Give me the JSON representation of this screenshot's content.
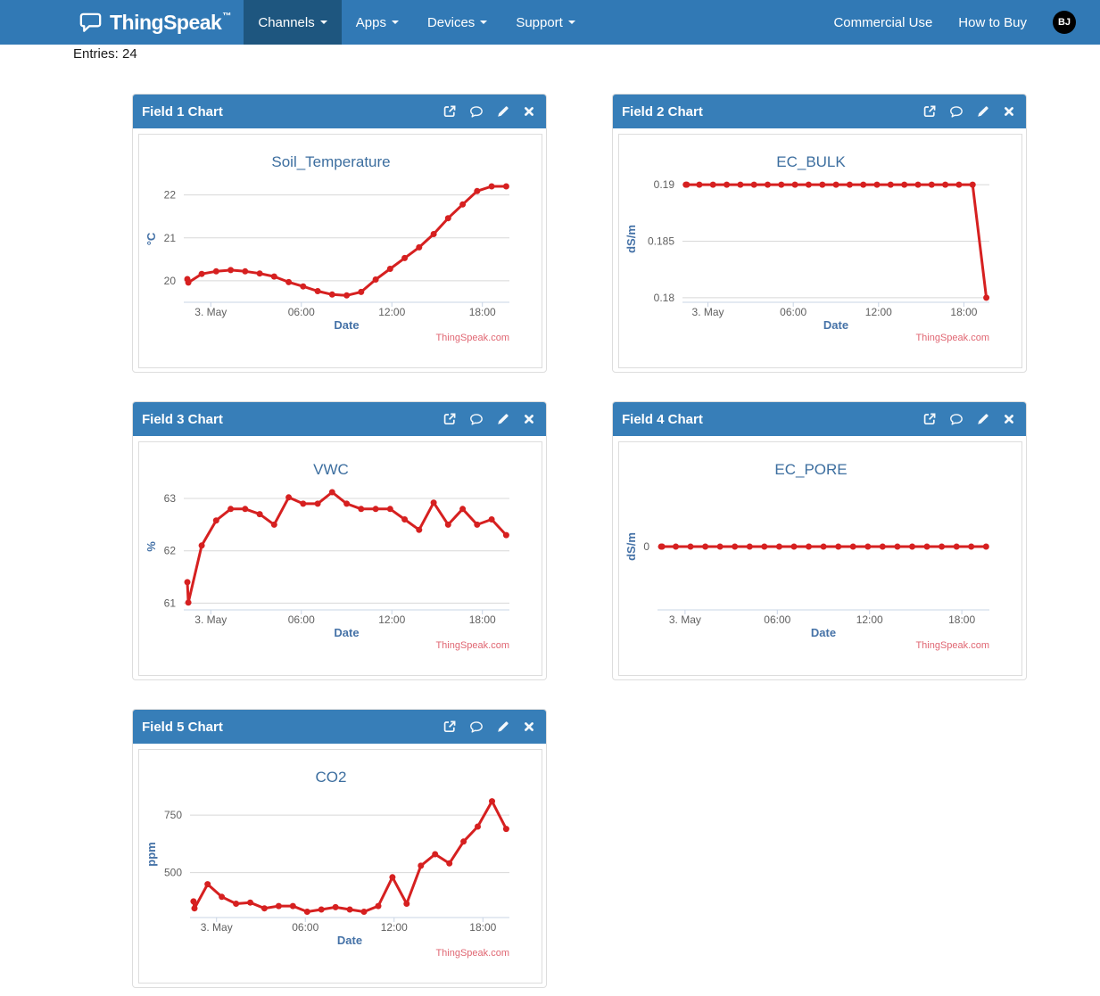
{
  "navbar": {
    "brand": "ThingSpeak",
    "brand_tm": "™",
    "items": [
      {
        "label": "Channels",
        "active": true
      },
      {
        "label": "Apps",
        "active": false
      },
      {
        "label": "Devices",
        "active": false
      },
      {
        "label": "Support",
        "active": false
      }
    ],
    "right_items": [
      {
        "label": "Commercial Use"
      },
      {
        "label": "How to Buy"
      }
    ],
    "avatar_initials": "BJ"
  },
  "page": {
    "entries_label": "Entries: 24"
  },
  "panels": [
    {
      "title": "Field 1 Chart",
      "chart_index": 0
    },
    {
      "title": "Field 2 Chart",
      "chart_index": 1
    },
    {
      "title": "Field 3 Chart",
      "chart_index": 2
    },
    {
      "title": "Field 4 Chart",
      "chart_index": 3
    },
    {
      "title": "Field 5 Chart",
      "chart_index": 4
    }
  ],
  "panel_header_icons": [
    "external-link-icon",
    "comment-icon",
    "edit-icon",
    "close-icon"
  ],
  "chart_common": {
    "xlabel": "Date",
    "credits": "ThingSpeak.com",
    "xticks": [
      {
        "label": "3. May",
        "f": 0.083
      },
      {
        "label": "06:00",
        "f": 0.361
      },
      {
        "label": "12:00",
        "f": 0.639
      },
      {
        "label": "18:00",
        "f": 0.917
      }
    ]
  },
  "chart_data": [
    {
      "type": "line",
      "title": "Soil_Temperature",
      "ylabel": "°C",
      "xlabel": "Date",
      "yticks": [
        "20",
        "21",
        "22"
      ],
      "ylim": [
        19.5,
        22.45
      ],
      "grid": true,
      "values": [
        20.04,
        19.96,
        20.16,
        20.22,
        20.25,
        20.22,
        20.17,
        20.1,
        19.97,
        19.87,
        19.76,
        19.68,
        19.66,
        19.74,
        20.03,
        20.28,
        20.53,
        20.78,
        21.09,
        21.46,
        21.78,
        22.09,
        22.2,
        22.2
      ]
    },
    {
      "type": "line",
      "title": "EC_BULK",
      "ylabel": "dS/m",
      "xlabel": "Date",
      "yticks": [
        "0.18",
        "0.185",
        "0.19"
      ],
      "ylim": [
        0.1796,
        0.1908
      ],
      "grid": true,
      "values": [
        0.19,
        0.19,
        0.19,
        0.19,
        0.19,
        0.19,
        0.19,
        0.19,
        0.19,
        0.19,
        0.19,
        0.19,
        0.19,
        0.19,
        0.19,
        0.19,
        0.19,
        0.19,
        0.19,
        0.19,
        0.19,
        0.19,
        0.19,
        0.18
      ]
    },
    {
      "type": "line",
      "title": "VWC",
      "ylabel": "%",
      "xlabel": "Date",
      "yticks": [
        "61",
        "62",
        "63"
      ],
      "ylim": [
        60.87,
        63.29
      ],
      "grid": true,
      "values": [
        61.4,
        61.01,
        62.1,
        62.58,
        62.8,
        62.8,
        62.7,
        62.5,
        63.02,
        62.9,
        62.9,
        63.12,
        62.9,
        62.8,
        62.8,
        62.8,
        62.6,
        62.4,
        62.92,
        62.5,
        62.8,
        62.5,
        62.6,
        62.3
      ]
    },
    {
      "type": "line",
      "title": "EC_PORE",
      "ylabel": "dS/m",
      "xlabel": "Date",
      "yticks": [
        "0"
      ],
      "ylim": [
        -1,
        1
      ],
      "grid": true,
      "values": [
        0,
        0,
        0,
        0,
        0,
        0,
        0,
        0,
        0,
        0,
        0,
        0,
        0,
        0,
        0,
        0,
        0,
        0,
        0,
        0,
        0,
        0,
        0,
        0
      ]
    },
    {
      "type": "line",
      "title": "CO2",
      "ylabel": "ppm",
      "xlabel": "Date",
      "yticks": [
        "500",
        "750"
      ],
      "ylim": [
        305,
        855
      ],
      "grid": true,
      "values": [
        375,
        345,
        450,
        395,
        365,
        370,
        345,
        355,
        355,
        330,
        340,
        350,
        340,
        330,
        355,
        480,
        365,
        530,
        580,
        540,
        635,
        700,
        810,
        690
      ]
    }
  ],
  "colors": {
    "navbar_bg": "#3179b5",
    "navbar_active_bg": "#1e567f",
    "panel_header_bg": "#377eb8",
    "series": "#d62020",
    "chart_title": "#3c6e9f",
    "axis_title": "#4572a7",
    "tick_label": "#606060",
    "credits": "#e06672",
    "grid": "#d8d8d8",
    "axis_line": "#c9d4e4"
  }
}
